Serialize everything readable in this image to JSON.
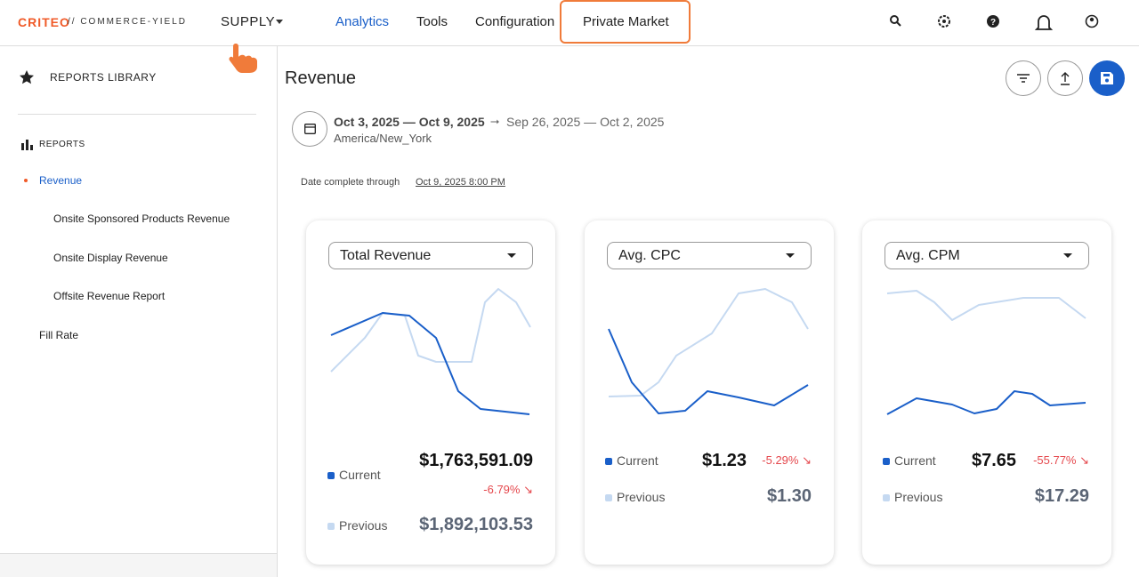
{
  "header": {
    "logo": "CRITEO",
    "logo_suffix": "// COMMERCE-YIELD",
    "menu": "SUPPLY",
    "nav": [
      "Analytics",
      "Tools",
      "Configuration",
      "Private Market"
    ]
  },
  "sidebar": {
    "library": "REPORTS LIBRARY",
    "section": "REPORTS",
    "items": [
      "Revenue",
      "Onsite Sponsored Products Revenue",
      "Onsite Display Revenue",
      "Offsite Revenue Report",
      "Fill Rate"
    ]
  },
  "main": {
    "title": "Revenue",
    "date_range": "Oct 3, 2025 — Oct 9, 2025",
    "compare_range": "Sep 26, 2025 — Oct 2, 2025",
    "timezone": "America/New_York",
    "complete_label": "Date complete through",
    "complete_date": "Oct 9, 2025 8:00 PM"
  },
  "cards": [
    {
      "metric": "Total Revenue",
      "current_label": "Current",
      "current": "$1,763,591.09",
      "change": "-6.79%",
      "previous_label": "Previous",
      "previous": "$1,892,103.53"
    },
    {
      "metric": "Avg. CPC",
      "current_label": "Current",
      "current": "$1.23",
      "change": "-5.29%",
      "previous_label": "Previous",
      "previous": "$1.30"
    },
    {
      "metric": "Avg. CPM",
      "current_label": "Current",
      "current": "$7.65",
      "change": "-55.77%",
      "previous_label": "Previous",
      "previous": "$17.29"
    }
  ]
}
